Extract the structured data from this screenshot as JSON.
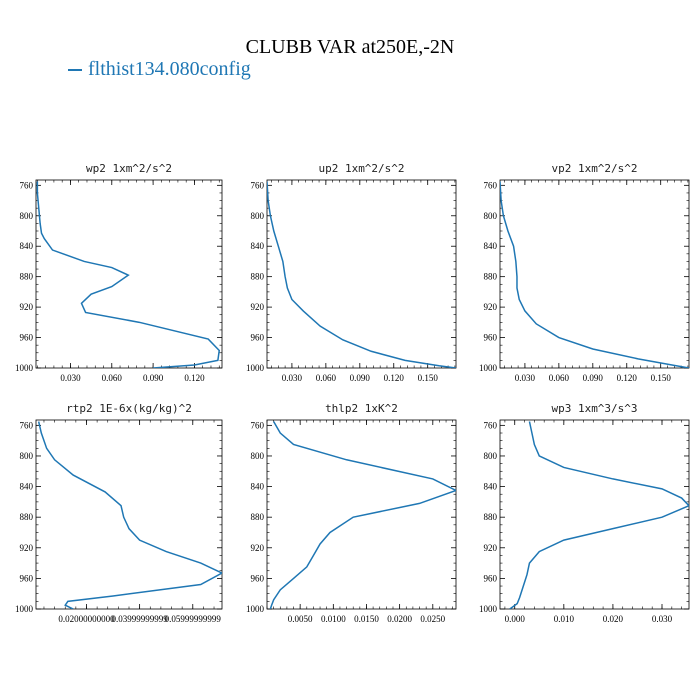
{
  "figure": {
    "title": "CLUBB VAR at250E,-2N",
    "legend": [
      {
        "name": "flthist134.080config",
        "color": "#1f77b4"
      }
    ]
  },
  "chart_data": [
    {
      "type": "line",
      "title": "wp2  1xm^2/s^2",
      "xlim": [
        0.005,
        0.14
      ],
      "ylim": [
        1000,
        753
      ],
      "xticks": [
        0.03,
        0.06,
        0.09,
        0.12
      ],
      "xtick_labels": [
        "0.030",
        "0.060",
        "0.090",
        "0.120"
      ],
      "yticks": [
        760,
        800,
        840,
        880,
        920,
        960,
        1000
      ],
      "series": [
        {
          "name": "flthist134.080config",
          "color": "#1f77b4",
          "x": [
            0.006,
            0.006,
            0.007,
            0.008,
            0.009,
            0.011,
            0.017,
            0.04,
            0.06,
            0.072,
            0.06,
            0.045,
            0.038,
            0.041,
            0.08,
            0.13,
            0.138,
            0.137,
            0.12,
            0.09
          ],
          "y": [
            755,
            770,
            790,
            810,
            823,
            830,
            845,
            860,
            868,
            878,
            893,
            903,
            915,
            927,
            940,
            962,
            977,
            990,
            996,
            1000
          ]
        }
      ]
    },
    {
      "type": "line",
      "title": "up2  1xm^2/s^2",
      "xlim": [
        0.008,
        0.175
      ],
      "ylim": [
        1000,
        753
      ],
      "xticks": [
        0.03,
        0.06,
        0.09,
        0.12,
        0.15
      ],
      "xtick_labels": [
        "0.030",
        "0.060",
        "0.090",
        "0.120",
        "0.150"
      ],
      "yticks": [
        760,
        800,
        840,
        880,
        920,
        960,
        1000
      ],
      "series": [
        {
          "name": "flthist134.080config",
          "color": "#1f77b4",
          "x": [
            0.008,
            0.009,
            0.011,
            0.014,
            0.018,
            0.022,
            0.024,
            0.026,
            0.03,
            0.04,
            0.055,
            0.075,
            0.1,
            0.13,
            0.16,
            0.175
          ],
          "y": [
            755,
            780,
            800,
            820,
            840,
            860,
            880,
            895,
            910,
            925,
            945,
            963,
            978,
            990,
            997,
            1000
          ]
        }
      ]
    },
    {
      "type": "line",
      "title": "vp2  1xm^2/s^2",
      "xlim": [
        0.008,
        0.175
      ],
      "ylim": [
        1000,
        753
      ],
      "xticks": [
        0.03,
        0.06,
        0.09,
        0.12,
        0.15
      ],
      "xtick_labels": [
        "0.030",
        "0.060",
        "0.090",
        "0.120",
        "0.150"
      ],
      "yticks": [
        760,
        800,
        840,
        880,
        920,
        960,
        1000
      ],
      "series": [
        {
          "name": "flthist134.080config",
          "color": "#1f77b4",
          "x": [
            0.008,
            0.009,
            0.011,
            0.015,
            0.02,
            0.022,
            0.023,
            0.023,
            0.025,
            0.03,
            0.04,
            0.06,
            0.09,
            0.13,
            0.16,
            0.175
          ],
          "y": [
            755,
            780,
            800,
            820,
            840,
            860,
            880,
            895,
            910,
            925,
            942,
            960,
            975,
            988,
            996,
            1000
          ]
        }
      ]
    },
    {
      "type": "line",
      "title": "rtp2  1E-6x(kg/kg)^2",
      "xlim": [
        0.001,
        0.071
      ],
      "ylim": [
        1000,
        753
      ],
      "xticks": [
        0.02,
        0.04,
        0.06
      ],
      "xtick_labels": [
        "0.02000000000",
        "0.03999999999",
        "0.05999999999"
      ],
      "yticks": [
        760,
        800,
        840,
        880,
        920,
        960,
        1000
      ],
      "series": [
        {
          "name": "flthist134.080config",
          "color": "#1f77b4",
          "x": [
            0.002,
            0.003,
            0.005,
            0.008,
            0.015,
            0.027,
            0.033,
            0.034,
            0.036,
            0.04,
            0.05,
            0.063,
            0.071,
            0.063,
            0.03,
            0.013,
            0.012,
            0.015
          ],
          "y": [
            755,
            770,
            790,
            805,
            825,
            847,
            865,
            880,
            895,
            910,
            925,
            940,
            953,
            968,
            983,
            990,
            995,
            1000
          ]
        }
      ]
    },
    {
      "type": "line",
      "title": "thlp2  1xK^2",
      "xlim": [
        0.0,
        0.0285
      ],
      "ylim": [
        1000,
        753
      ],
      "xticks": [
        0.005,
        0.01,
        0.015,
        0.02,
        0.025
      ],
      "xtick_labels": [
        "0.0050",
        "0.0100",
        "0.0150",
        "0.0200",
        "0.0250"
      ],
      "yticks": [
        760,
        800,
        840,
        880,
        920,
        960,
        1000
      ],
      "series": [
        {
          "name": "flthist134.080config",
          "color": "#1f77b4",
          "x": [
            0.001,
            0.002,
            0.004,
            0.012,
            0.025,
            0.0285,
            0.023,
            0.013,
            0.0095,
            0.008,
            0.007,
            0.006,
            0.004,
            0.002,
            0.001,
            0.0007,
            0.0005
          ],
          "y": [
            755,
            770,
            785,
            805,
            830,
            845,
            862,
            880,
            900,
            915,
            930,
            945,
            960,
            975,
            988,
            995,
            1000
          ]
        }
      ]
    },
    {
      "type": "line",
      "title": "wp3  1xm^3/s^3",
      "xlim": [
        -0.003,
        0.0355
      ],
      "ylim": [
        1000,
        753
      ],
      "xticks": [
        0.0,
        0.01,
        0.02,
        0.03
      ],
      "xtick_labels": [
        "0.000",
        "0.010",
        "0.020",
        "0.030"
      ],
      "yticks": [
        760,
        800,
        840,
        880,
        920,
        960,
        1000
      ],
      "series": [
        {
          "name": "flthist134.080config",
          "color": "#1f77b4",
          "x": [
            0.003,
            0.0035,
            0.004,
            0.005,
            0.01,
            0.02,
            0.03,
            0.034,
            0.0355,
            0.03,
            0.02,
            0.01,
            0.005,
            0.003,
            0.0025,
            0.002,
            0.0015,
            0.001,
            0.0005,
            -0.001
          ],
          "y": [
            755,
            770,
            785,
            800,
            815,
            830,
            843,
            855,
            865,
            880,
            895,
            910,
            925,
            940,
            955,
            965,
            975,
            985,
            993,
            1000
          ]
        }
      ]
    }
  ]
}
